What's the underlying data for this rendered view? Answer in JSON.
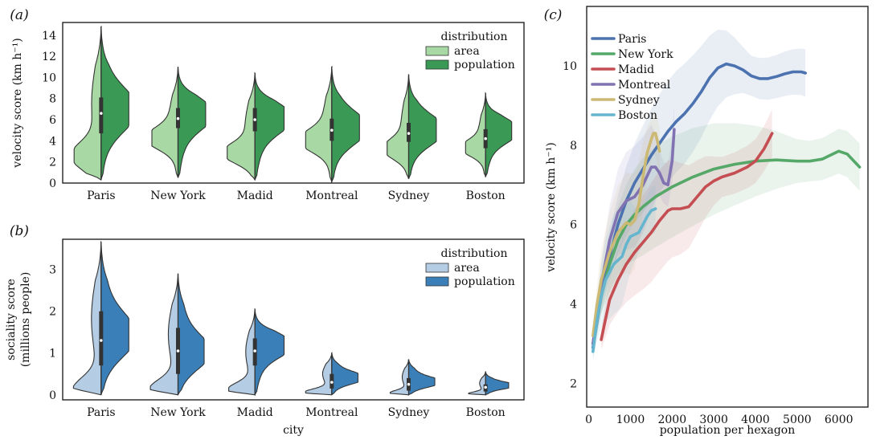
{
  "chart_data": [
    {
      "panel": "(a)",
      "type": "violin",
      "title": "",
      "xlabel": "",
      "ylabel": "velocity score (km h⁻¹)",
      "ylim": [
        0,
        15.2
      ],
      "yticks": [
        0,
        2,
        4,
        6,
        8,
        10,
        12,
        14
      ],
      "categories": [
        "Paris",
        "New York",
        "Madid",
        "Montreal",
        "Sydney",
        "Boston"
      ],
      "legend": {
        "title": "distribution",
        "placement": "top-right",
        "items": [
          "area",
          "population"
        ]
      },
      "colors": {
        "area": "#a8d8a3",
        "population": "#3a9a55",
        "edge": "#333333"
      },
      "violins": [
        {
          "city": "Paris",
          "min": 0.3,
          "max": 14.8,
          "median": 6.6,
          "q1": 4.7,
          "q3": 8.1,
          "area_peak": 2.5,
          "area_width": 0.88,
          "pop_peak": 6.9,
          "pop_width": 0.9
        },
        {
          "city": "New York",
          "min": 0.5,
          "max": 11.0,
          "median": 6.1,
          "q1": 5.2,
          "q3": 7.1,
          "area_peak": 4.2,
          "area_width": 0.85,
          "pop_peak": 6.6,
          "pop_width": 0.9
        },
        {
          "city": "Madid",
          "min": 0.3,
          "max": 10.4,
          "median": 6.0,
          "q1": 4.9,
          "q3": 7.1,
          "area_peak": 2.8,
          "area_width": 0.9,
          "pop_peak": 6.2,
          "pop_width": 0.95
        },
        {
          "city": "Montreal",
          "min": 0.1,
          "max": 11.0,
          "median": 5.0,
          "q1": 4.0,
          "q3": 6.1,
          "area_peak": 4.0,
          "area_width": 0.85,
          "pop_peak": 5.2,
          "pop_width": 0.9
        },
        {
          "city": "Sydney",
          "min": 0.4,
          "max": 10.3,
          "median": 4.7,
          "q1": 3.9,
          "q3": 5.7,
          "area_peak": 3.2,
          "area_width": 0.7,
          "pop_peak": 5.0,
          "pop_width": 0.9
        },
        {
          "city": "Boston",
          "min": 0.6,
          "max": 8.5,
          "median": 4.2,
          "q1": 3.3,
          "q3": 5.1,
          "area_peak": 3.3,
          "area_width": 0.65,
          "pop_peak": 5.0,
          "pop_width": 0.85
        }
      ]
    },
    {
      "panel": "(b)",
      "type": "violin",
      "title": "",
      "xlabel": "city",
      "ylabel": "sociality score (millions people)",
      "ylabel_lines": [
        "sociality score",
        "(millions people)"
      ],
      "ylim": [
        -0.12,
        3.72
      ],
      "yticks": [
        0,
        1,
        2,
        3
      ],
      "categories": [
        "Paris",
        "New York",
        "Madid",
        "Montreal",
        "Sydney",
        "Boston"
      ],
      "legend": {
        "title": "distribution",
        "placement": "top-right",
        "items": [
          "area",
          "population"
        ]
      },
      "colors": {
        "area": "#b4cde4",
        "population": "#3b7fb8",
        "edge": "#333333"
      },
      "violins": [
        {
          "city": "Paris",
          "min": 0.0,
          "max": 3.65,
          "median": 1.3,
          "q1": 0.7,
          "q3": 2.0,
          "area_peak": 0.08,
          "area_width": 0.9,
          "pop_peak": 1.4,
          "pop_width": 0.9
        },
        {
          "city": "New York",
          "min": 0.0,
          "max": 2.9,
          "median": 1.05,
          "q1": 0.5,
          "q3": 1.6,
          "area_peak": 0.1,
          "area_width": 0.9,
          "pop_peak": 1.0,
          "pop_width": 0.85
        },
        {
          "city": "Madid",
          "min": 0.0,
          "max": 2.05,
          "median": 1.05,
          "q1": 0.7,
          "q3": 1.35,
          "area_peak": 0.1,
          "area_width": 0.85,
          "pop_peak": 1.2,
          "pop_width": 0.95
        },
        {
          "city": "Montreal",
          "min": 0.0,
          "max": 1.0,
          "median": 0.3,
          "q1": 0.15,
          "q3": 0.5,
          "area_peak": 0.05,
          "area_width": 0.85,
          "pop_peak": 0.4,
          "pop_width": 0.85
        },
        {
          "city": "Sydney",
          "min": 0.0,
          "max": 0.85,
          "median": 0.25,
          "q1": 0.1,
          "q3": 0.4,
          "area_peak": 0.03,
          "area_width": 0.6,
          "pop_peak": 0.3,
          "pop_width": 0.85
        },
        {
          "city": "Boston",
          "min": 0.0,
          "max": 0.55,
          "median": 0.18,
          "q1": 0.08,
          "q3": 0.25,
          "area_peak": 0.02,
          "area_width": 0.55,
          "pop_peak": 0.22,
          "pop_width": 0.75
        }
      ]
    },
    {
      "panel": "(c)",
      "type": "line",
      "title": "",
      "xlabel": "population per hexagon",
      "ylabel": "velocity score (km h⁻¹)",
      "xlim": [
        -50,
        6700
      ],
      "ylim": [
        1.4,
        11.5
      ],
      "xticks": [
        0,
        1000,
        2000,
        3000,
        4000,
        5000,
        6000
      ],
      "yticks": [
        2,
        4,
        6,
        8,
        10
      ],
      "legend": {
        "placement": "top-left"
      },
      "series": [
        {
          "name": "Paris",
          "color": "#4c72b0",
          "x": [
            100,
            300,
            500,
            700,
            900,
            1100,
            1300,
            1500,
            1700,
            1900,
            2100,
            2300,
            2500,
            2700,
            2900,
            3100,
            3300,
            3500,
            3700,
            3900,
            4100,
            4300,
            4500,
            4700,
            4900,
            5100,
            5200
          ],
          "y": [
            2.9,
            4.2,
            5.2,
            6.0,
            6.6,
            7.05,
            7.4,
            7.75,
            8.05,
            8.35,
            8.6,
            8.8,
            9.05,
            9.35,
            9.7,
            9.95,
            10.05,
            10.0,
            9.9,
            9.75,
            9.68,
            9.68,
            9.73,
            9.8,
            9.85,
            9.85,
            9.82
          ]
        },
        {
          "name": "New York",
          "color": "#55a868",
          "x": [
            100,
            300,
            500,
            700,
            900,
            1100,
            1300,
            1600,
            2000,
            2500,
            3000,
            3500,
            4000,
            4500,
            5000,
            5300,
            5600,
            5800,
            6000,
            6200,
            6500
          ],
          "y": [
            3.0,
            4.2,
            5.0,
            5.6,
            6.0,
            6.25,
            6.45,
            6.7,
            6.95,
            7.2,
            7.4,
            7.52,
            7.6,
            7.63,
            7.6,
            7.6,
            7.65,
            7.75,
            7.85,
            7.78,
            7.45
          ]
        },
        {
          "name": "Madid",
          "color": "#c44e52",
          "x": [
            300,
            400,
            500,
            700,
            900,
            1100,
            1300,
            1500,
            1700,
            1900,
            2000,
            2200,
            2400,
            2600,
            2800,
            3000,
            3200,
            3500,
            3800,
            4000,
            4200,
            4300,
            4400
          ],
          "y": [
            3.1,
            3.6,
            4.1,
            4.6,
            5.0,
            5.3,
            5.55,
            5.8,
            6.1,
            6.35,
            6.4,
            6.4,
            6.45,
            6.7,
            6.95,
            7.1,
            7.2,
            7.3,
            7.45,
            7.6,
            7.9,
            8.1,
            8.3
          ]
        },
        {
          "name": "Montreal",
          "color": "#8172b2",
          "x": [
            100,
            300,
            500,
            700,
            900,
            1100,
            1300,
            1500,
            1600,
            1700,
            1800,
            1900,
            2000,
            2050
          ],
          "y": [
            3.0,
            4.5,
            5.6,
            6.3,
            6.6,
            6.7,
            7.0,
            7.45,
            7.45,
            7.3,
            7.05,
            7.0,
            7.6,
            8.4
          ]
        },
        {
          "name": "Sydney",
          "color": "#ccb974",
          "x": [
            100,
            200,
            300,
            500,
            700,
            900,
            1000,
            1100,
            1200,
            1300,
            1400,
            1500,
            1550,
            1600,
            1650,
            1700
          ],
          "y": [
            3.2,
            4.0,
            4.6,
            5.3,
            5.8,
            6.05,
            6.0,
            6.1,
            6.5,
            7.2,
            7.8,
            8.15,
            8.3,
            8.3,
            8.1,
            7.85
          ]
        },
        {
          "name": "Boston",
          "color": "#64b5cd",
          "x": [
            100,
            200,
            300,
            400,
            500,
            600,
            700,
            800,
            900,
            1000,
            1100,
            1200,
            1300,
            1400,
            1500,
            1600
          ],
          "y": [
            2.8,
            3.6,
            4.2,
            4.6,
            4.8,
            5.0,
            5.1,
            5.2,
            5.5,
            5.7,
            5.75,
            5.8,
            6.0,
            6.2,
            6.35,
            6.4
          ]
        }
      ]
    }
  ]
}
